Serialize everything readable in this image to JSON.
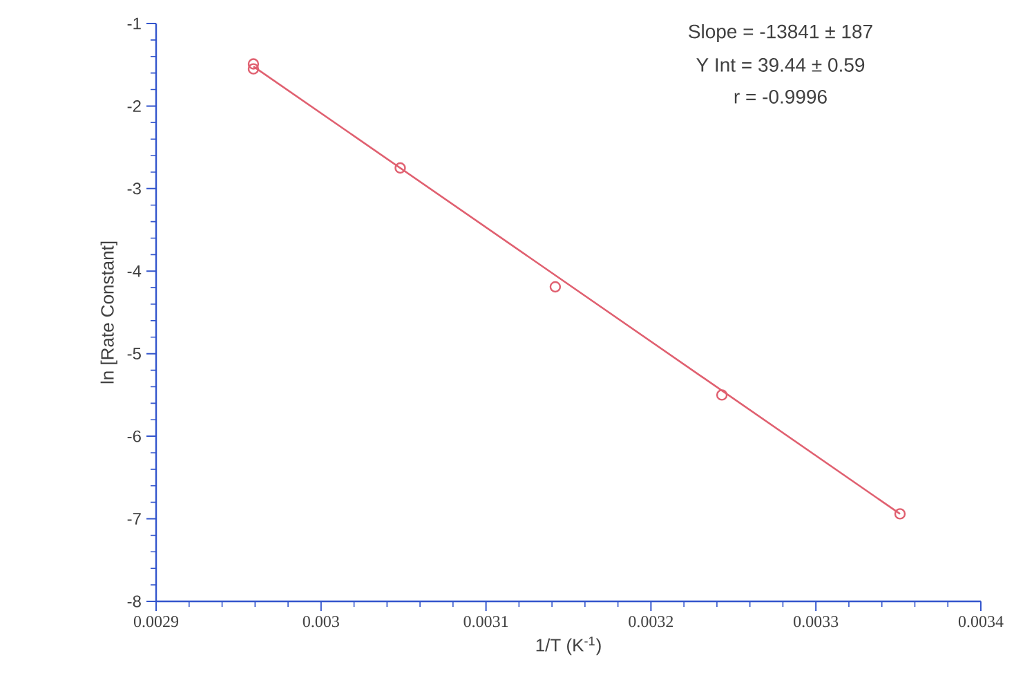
{
  "chart_data": {
    "type": "scatter",
    "xlabel": "1/T    (K$^{-1}$)",
    "ylabel": "ln [Rate Constant]",
    "xlim": [
      0.0029,
      0.0034
    ],
    "ylim": [
      -8,
      -1
    ],
    "xticks": [
      0.0029,
      0.003,
      0.0031,
      0.0032,
      0.0033,
      0.0034
    ],
    "yticks": [
      -8,
      -7,
      -6,
      -5,
      -4,
      -3,
      -2,
      -1
    ],
    "marker": "circle",
    "series": [
      {
        "color": "#e06070",
        "x": [
          0.002959,
          0.002959,
          0.003048,
          0.003142,
          0.003243,
          0.003351
        ],
        "values": [
          -1.49,
          -1.55,
          -2.75,
          -4.19,
          -5.5,
          -6.94
        ]
      },
      {
        "type": "line",
        "color": "#e06070",
        "marker": "none",
        "x": [
          0.002959,
          0.003351
        ],
        "values": [
          -1.52,
          -6.94
        ]
      }
    ],
    "annotations": [
      "Slope = -13841 ± 187",
      "Y Int = 39.44 ± 0.59",
      "r  =  -0.9996"
    ]
  }
}
